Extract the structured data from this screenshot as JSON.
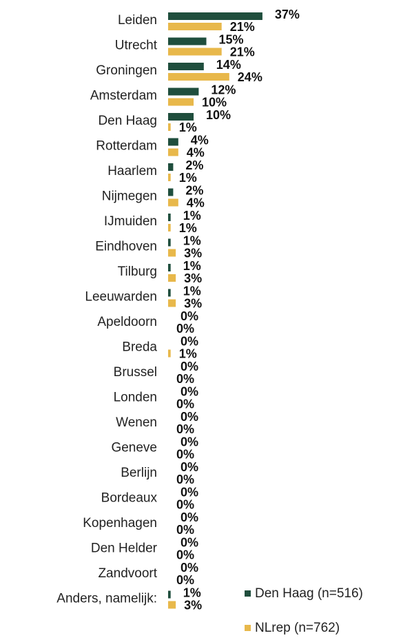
{
  "chart_data": {
    "type": "bar",
    "orientation": "horizontal",
    "categories": [
      "Leiden",
      "Utrecht",
      "Groningen",
      "Amsterdam",
      "Den Haag",
      "Rotterdam",
      "Haarlem",
      "Nijmegen",
      "IJmuiden",
      "Eindhoven",
      "Tilburg",
      "Leeuwarden",
      "Apeldoorn",
      "Breda",
      "Brussel",
      "Londen",
      "Wenen",
      "Geneve",
      "Berlijn",
      "Bordeaux",
      "Kopenhagen",
      "Den Helder",
      "Zandvoort",
      "Anders, namelijk:"
    ],
    "series": [
      {
        "name": "Den Haag  (n=516)",
        "color": "#1f4e3d",
        "values": [
          37,
          15,
          14,
          12,
          10,
          4,
          2,
          2,
          1,
          1,
          1,
          1,
          0,
          0,
          0,
          0,
          0,
          0,
          0,
          0,
          0,
          0,
          0,
          1
        ],
        "value_labels": [
          "37%",
          "15%",
          "14%",
          "12%",
          "10%",
          "4%",
          "2%",
          "2%",
          "1%",
          "1%",
          "1%",
          "1%",
          "0%",
          "0%",
          "0%",
          "0%",
          "0%",
          "0%",
          "0%",
          "0%",
          "0%",
          "0%",
          "0%",
          "1%"
        ]
      },
      {
        "name": "NLrep  (n=762)",
        "color": "#e8b84b",
        "values": [
          21,
          21,
          24,
          10,
          1,
          4,
          1,
          4,
          1,
          3,
          3,
          3,
          0,
          1,
          0,
          0,
          0,
          0,
          0,
          0,
          0,
          0,
          0,
          3
        ],
        "value_labels": [
          "21%",
          "21%",
          "24%",
          "10%",
          "1%",
          "4%",
          "1%",
          "4%",
          "1%",
          "3%",
          "3%",
          "3%",
          "0%",
          "1%",
          "0%",
          "0%",
          "0%",
          "0%",
          "0%",
          "0%",
          "0%",
          "0%",
          "0%",
          "3%"
        ]
      }
    ]
  }
}
